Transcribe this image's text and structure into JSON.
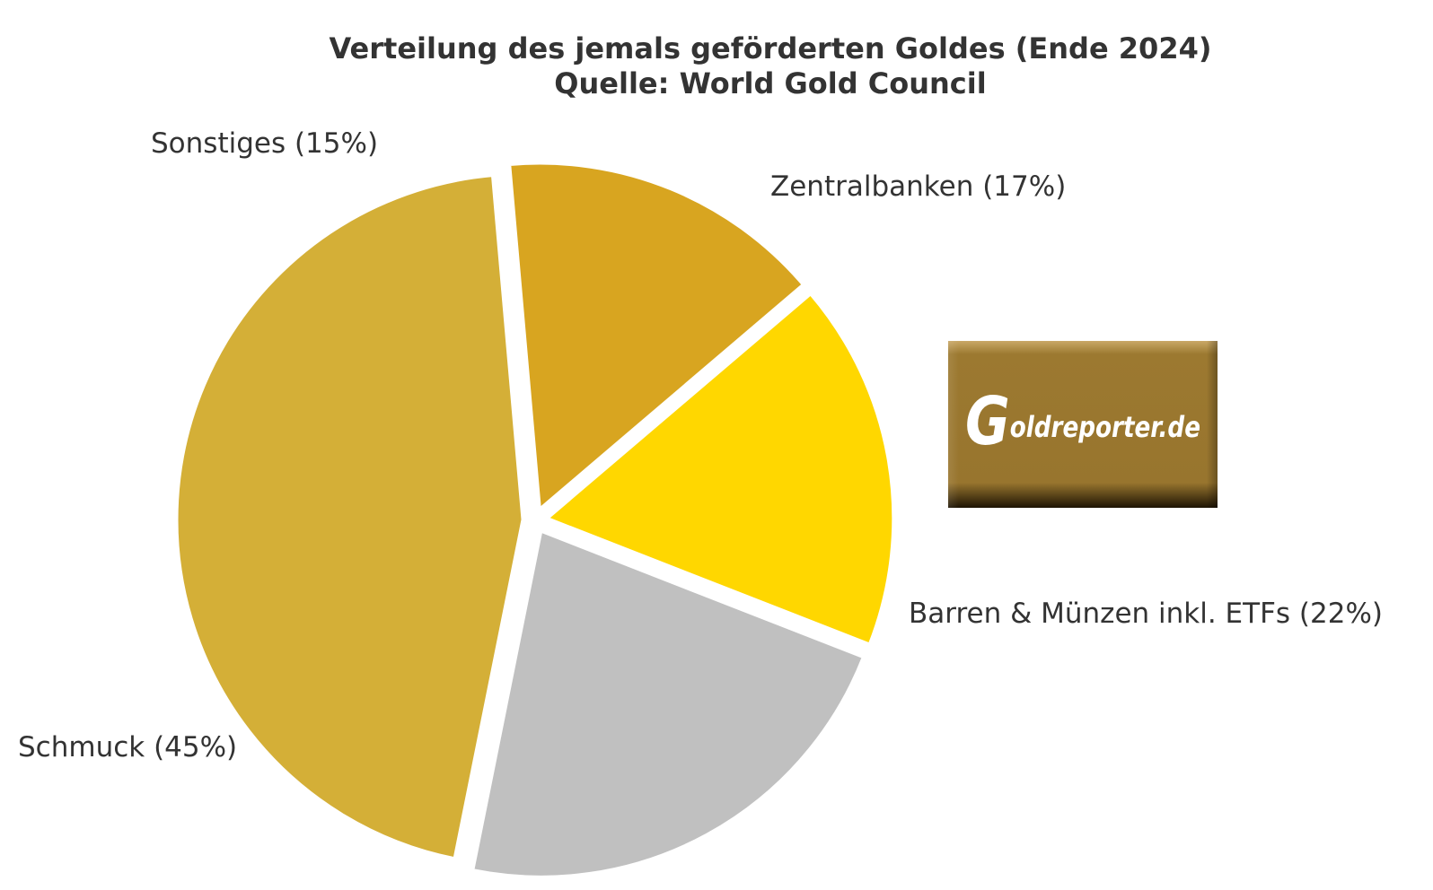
{
  "chart_data": {
    "type": "pie",
    "title": "Verteilung des jemals geförderten Goldes (Ende 2024)",
    "subtitle": "Quelle: World Gold Council",
    "slices": [
      {
        "label": "Sonstiges (15%)",
        "value": 15,
        "color": "#D8A520"
      },
      {
        "label": "Zentralbanken (17%)",
        "value": 17,
        "color": "#FFD700"
      },
      {
        "label": "Barren & Münzen inkl. ETFs (22%)",
        "value": 22,
        "color": "#C0C0C0"
      },
      {
        "label": "Schmuck (45%)",
        "value": 45,
        "color": "#D4AF37"
      }
    ]
  },
  "logo": {
    "text": "Goldreporter.de",
    "color": "#9A7730"
  }
}
